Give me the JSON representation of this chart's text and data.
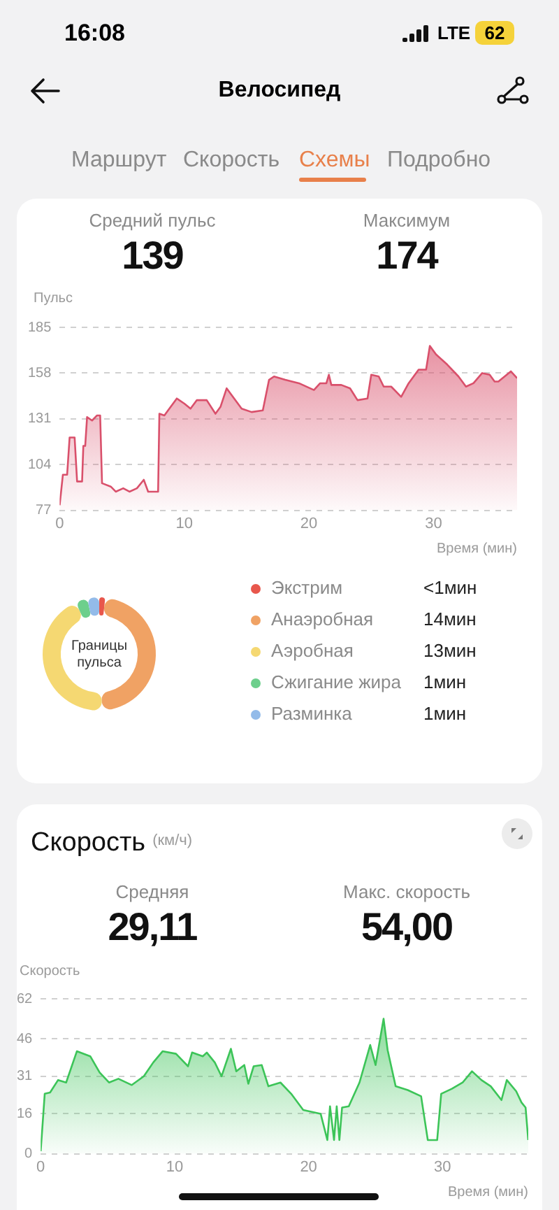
{
  "chart_data": [
    {
      "type": "other",
      "title": "Велосипед",
      "annotations": [
        "16:08",
        "LTE",
        "62",
        "Маршрут",
        "Скорость",
        "Схемы",
        "Подробно"
      ]
    },
    {
      "type": "area",
      "ylabel": "Пульс",
      "xlabel": "Время (мин)",
      "annotations": [
        "Средний пульс",
        "139",
        "Максимум",
        "174"
      ],
      "xlim": [
        0,
        36.7
      ],
      "xticks": [
        0,
        10,
        20,
        30
      ],
      "ylim": [
        77,
        185
      ],
      "yticks": [
        77,
        104,
        131,
        158,
        185
      ],
      "grid": "y",
      "marker": "none",
      "series": [
        {
          "color": "#d9506b",
          "x": [
            0,
            0.26,
            0.6,
            0.8,
            1.2,
            1.4,
            1.8,
            1.9,
            2.05,
            2.2,
            2.6,
            3.0,
            3.25,
            3.4,
            4.1,
            4.5,
            5.1,
            5.6,
            6.2,
            6.75,
            7.1,
            7.9,
            8.0,
            8.4,
            8.8,
            9.4,
            10,
            10.5,
            11,
            11.8,
            12.5,
            12.9,
            13.4,
            14,
            14.6,
            15.4,
            16.3,
            16.8,
            17.2,
            18.1,
            19.2,
            20.4,
            20.9,
            21.4,
            21.6,
            21.8,
            22.6,
            23.3,
            23.9,
            24.7,
            25,
            25.6,
            26,
            26.6,
            27.4,
            28,
            28.8,
            29.4,
            29.7,
            30.2,
            31.1,
            32,
            32.6,
            33.2,
            33.9,
            34.5,
            34.9,
            35.2,
            36.2,
            36.7
          ],
          "values": [
            80,
            98,
            98,
            120,
            120,
            94,
            94,
            115,
            115,
            132,
            130,
            133,
            133,
            93,
            91,
            88,
            90,
            88,
            90,
            95,
            88,
            88,
            134,
            133,
            137,
            143,
            140,
            137,
            142,
            142,
            134,
            138,
            149,
            143,
            137,
            135,
            136,
            154,
            156,
            154,
            152,
            148,
            152,
            152,
            157,
            151,
            151,
            149,
            142,
            143,
            157,
            156,
            150,
            150,
            144,
            152,
            160,
            160,
            174,
            169,
            163,
            156,
            150,
            152,
            158,
            157,
            153,
            153,
            159,
            155
          ]
        }
      ]
    },
    {
      "type": "donut",
      "title": "Границы пульса",
      "legend": "right",
      "categories": [
        "Экстрим",
        "Анаэробная",
        "Аэробная",
        "Сжигание жира",
        "Разминка"
      ],
      "values": [
        0.5,
        14,
        13,
        1,
        1
      ],
      "colors": [
        "#e8574c",
        "#f0a264",
        "#f5d872",
        "#6dcf8c",
        "#93bbe9"
      ],
      "value_labels": [
        "<1мин",
        "14мин",
        "13мин",
        "1мин",
        "1мин"
      ]
    },
    {
      "type": "area",
      "title": "Скорость",
      "subtitle": "(км/ч)",
      "ylabel": "Скорость",
      "xlabel": "Время (мин)",
      "annotations": [
        "Средняя",
        "29,11",
        "Макс. скорость",
        "54,00"
      ],
      "xlim": [
        0,
        36.4
      ],
      "xticks": [
        0,
        10,
        20,
        30
      ],
      "ylim": [
        0,
        62
      ],
      "yticks": [
        0,
        16,
        31,
        46,
        62
      ],
      "grid": "y",
      "marker": "none",
      "series": [
        {
          "color": "#3cc458",
          "x": [
            0,
            0.3,
            0.7,
            1.3,
            1.9,
            2.7,
            3.7,
            4.4,
            5.1,
            5.8,
            6.8,
            7.7,
            8.4,
            9.1,
            10.1,
            11,
            11.3,
            12.1,
            12.4,
            13,
            13.5,
            14.2,
            14.6,
            15.2,
            15.5,
            15.9,
            16.5,
            17,
            17.9,
            18.7,
            19.6,
            20.9,
            21.4,
            21.6,
            21.9,
            22.1,
            22.3,
            22.5,
            23,
            23.8,
            24.6,
            25,
            25.6,
            25.9,
            26.5,
            27.4,
            28.4,
            28.9,
            29.6,
            29.9,
            30.7,
            31.5,
            32.2,
            32.9,
            33.6,
            34.4,
            34.8,
            35.5,
            35.9,
            36.2,
            36.4
          ],
          "values": [
            1,
            24,
            24.5,
            29.5,
            28.5,
            41,
            39,
            32.5,
            28.5,
            30,
            27.5,
            31,
            36.5,
            41,
            40,
            35,
            40.5,
            39,
            40.5,
            36.5,
            31,
            42,
            33,
            35.5,
            28,
            35,
            35.5,
            27,
            28.5,
            24,
            17.5,
            16,
            5.5,
            19,
            5.5,
            19,
            5.5,
            18.5,
            19,
            28.5,
            43.5,
            35.5,
            54,
            41.5,
            27,
            25.5,
            23,
            5.5,
            5.5,
            24,
            26,
            28.5,
            33,
            29.5,
            27,
            21.5,
            29.5,
            25,
            20.5,
            18.5,
            5.5
          ]
        }
      ]
    }
  ]
}
